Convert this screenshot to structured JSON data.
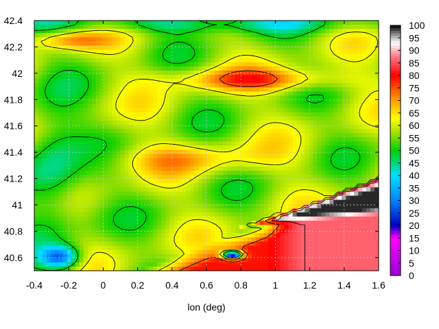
{
  "chart_data": {
    "type": "heatmap",
    "title": "",
    "xlabel": "lon (deg)",
    "ylabel": "",
    "xlim": [
      -0.4,
      1.6
    ],
    "ylim": [
      40.5,
      42.4
    ],
    "x_ticks": [
      "-0.4",
      "-0.2",
      "0",
      "0.2",
      "0.4",
      "0.6",
      "0.8",
      "1",
      "1.2",
      "1.4",
      "1.6"
    ],
    "y_ticks": [
      "40.6",
      "40.8",
      "41",
      "41.2",
      "41.4",
      "41.6",
      "41.8",
      "42",
      "42.2",
      "42.4"
    ],
    "colorbar": {
      "range": [
        0,
        100
      ],
      "ticks": [
        "0",
        "5",
        "10",
        "15",
        "20",
        "25",
        "30",
        "35",
        "40",
        "45",
        "50",
        "55",
        "60",
        "65",
        "70",
        "75",
        "80",
        "85",
        "90",
        "95",
        "100"
      ],
      "colormap": [
        {
          "v": 0,
          "c": "#9400d3"
        },
        {
          "v": 15,
          "c": "#ff00ff"
        },
        {
          "v": 20,
          "c": "#0000c0"
        },
        {
          "v": 30,
          "c": "#0080ff"
        },
        {
          "v": 40,
          "c": "#00e0ff"
        },
        {
          "v": 50,
          "c": "#00d000"
        },
        {
          "v": 57,
          "c": "#a0e000"
        },
        {
          "v": 63,
          "c": "#ffff00"
        },
        {
          "v": 70,
          "c": "#ffa000"
        },
        {
          "v": 80,
          "c": "#ff0000"
        },
        {
          "v": 88,
          "c": "#ff8090"
        },
        {
          "v": 93,
          "c": "#ffffff"
        },
        {
          "v": 96,
          "c": "#a0a0a0"
        },
        {
          "v": 100,
          "c": "#000000"
        }
      ]
    },
    "grid": true,
    "grid_color": "#c8c8c8",
    "contour_color": "#000000",
    "field_features": [
      {
        "name": "background",
        "lon": 0.6,
        "lat": 41.45,
        "value": 57
      },
      {
        "name": "north-ridge",
        "lon": 0.9,
        "lat": 41.95,
        "value": 76
      },
      {
        "name": "northwest-ridge",
        "lon": -0.2,
        "lat": 42.25,
        "value": 74
      },
      {
        "name": "north-edge-low",
        "lon": 0.55,
        "lat": 42.38,
        "value": 48
      },
      {
        "name": "central-band",
        "lon": 0.5,
        "lat": 41.35,
        "value": 69
      },
      {
        "name": "west-low",
        "lon": -0.3,
        "lat": 41.25,
        "value": 46
      },
      {
        "name": "southwest-low",
        "lon": -0.25,
        "lat": 40.6,
        "value": 32
      },
      {
        "name": "south-red",
        "lon": 0.7,
        "lat": 40.6,
        "value": 79
      },
      {
        "name": "southeast-pink",
        "lon": 1.2,
        "lat": 40.6,
        "value": 86
      },
      {
        "name": "black-wedge",
        "lon": 1.25,
        "lat": 40.95,
        "value": 99
      },
      {
        "name": "pink-patch",
        "lon": 0.75,
        "lat": 40.62,
        "value": 16
      }
    ]
  }
}
